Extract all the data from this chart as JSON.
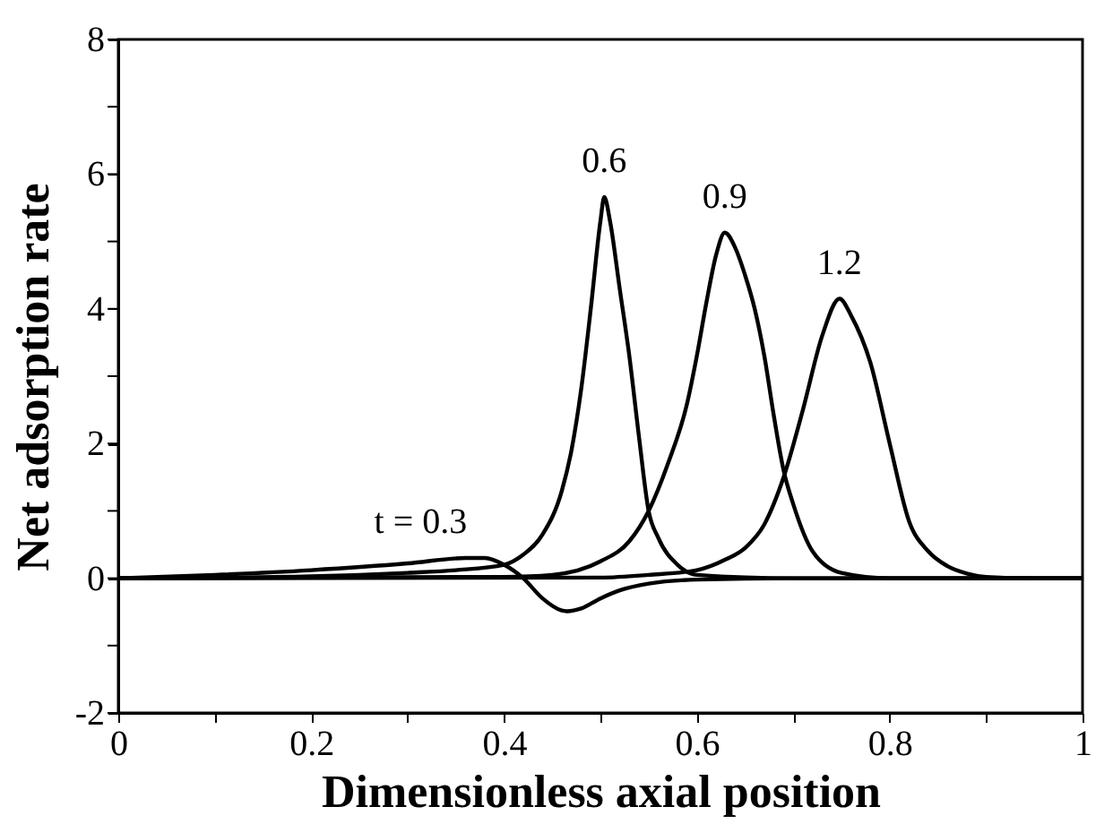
{
  "chart_data": {
    "type": "line",
    "xlabel": "Dimensionless   axial   position",
    "ylabel": "Net   adsorption   rate",
    "xlim": [
      0,
      1
    ],
    "ylim": [
      -2,
      8
    ],
    "xticks": [
      0,
      {
        "value": 0.1,
        "label": null
      },
      0.2,
      {
        "value": 0.3,
        "label": null
      },
      0.4,
      {
        "value": 0.5,
        "label": null
      },
      0.6,
      {
        "value": 0.7,
        "label": null
      },
      0.8,
      {
        "value": 0.9,
        "label": null
      },
      1
    ],
    "yticks": [
      -2,
      {
        "value": -1,
        "label": null
      },
      0,
      {
        "value": 1,
        "label": null
      },
      2,
      {
        "value": 3,
        "label": null
      },
      4,
      {
        "value": 5,
        "label": null
      },
      6,
      {
        "value": 7,
        "label": null
      },
      8
    ],
    "grid": false,
    "marker": "none",
    "line_style": "solid",
    "series": [
      {
        "color": "#000000",
        "x": [
          0,
          0.1,
          0.2,
          0.3,
          0.36,
          0.38,
          0.4,
          0.42,
          0.44,
          0.46,
          0.465,
          0.48,
          0.5,
          0.52,
          0.55,
          0.6,
          0.7,
          1
        ],
        "values": [
          0,
          0.05,
          0.12,
          0.22,
          0.3,
          0.3,
          0.2,
          0.0,
          -0.3,
          -0.48,
          -0.49,
          -0.45,
          -0.3,
          -0.18,
          -0.08,
          -0.02,
          0,
          0
        ]
      },
      {
        "color": "#000000",
        "x": [
          0,
          0.2,
          0.3,
          0.35,
          0.4,
          0.42,
          0.44,
          0.46,
          0.47,
          0.48,
          0.49,
          0.5,
          0.504,
          0.51,
          0.52,
          0.53,
          0.54,
          0.55,
          0.56,
          0.58,
          0.6,
          0.7,
          1
        ],
        "values": [
          0,
          0.03,
          0.08,
          0.12,
          0.2,
          0.35,
          0.65,
          1.3,
          1.9,
          2.8,
          4.0,
          5.3,
          5.66,
          5.3,
          4.3,
          3.3,
          2.1,
          1.0,
          0.6,
          0.2,
          0.05,
          0,
          0
        ]
      },
      {
        "color": "#000000",
        "x": [
          0,
          0.4,
          0.45,
          0.5,
          0.53,
          0.55,
          0.57,
          0.59,
          0.6,
          0.61,
          0.62,
          0.629,
          0.64,
          0.65,
          0.66,
          0.67,
          0.68,
          0.69,
          0.7,
          0.72,
          0.75,
          0.8,
          1
        ],
        "values": [
          0,
          0.02,
          0.05,
          0.25,
          0.55,
          1.0,
          1.7,
          2.6,
          3.3,
          4.1,
          4.8,
          5.13,
          4.9,
          4.5,
          4.0,
          3.3,
          2.4,
          1.6,
          1.1,
          0.4,
          0.08,
          0,
          0
        ]
      },
      {
        "color": "#000000",
        "x": [
          0,
          0.5,
          0.55,
          0.6,
          0.63,
          0.65,
          0.67,
          0.69,
          0.71,
          0.73,
          0.748,
          0.76,
          0.78,
          0.8,
          0.82,
          0.84,
          0.86,
          0.88,
          0.9,
          0.95,
          1
        ],
        "values": [
          0,
          0.01,
          0.05,
          0.12,
          0.28,
          0.45,
          0.8,
          1.5,
          2.5,
          3.6,
          4.15,
          3.9,
          3.2,
          2.0,
          0.85,
          0.4,
          0.18,
          0.07,
          0.02,
          0,
          0
        ]
      }
    ],
    "annotations": [
      {
        "text": "t = 0.3",
        "x": 0.36,
        "y": 0.3
      },
      {
        "text": "0.6",
        "x": 0.504,
        "y": 5.66
      },
      {
        "text": "0.9",
        "x": 0.629,
        "y": 5.13
      },
      {
        "text": "1.2",
        "x": 0.748,
        "y": 4.15
      }
    ]
  }
}
